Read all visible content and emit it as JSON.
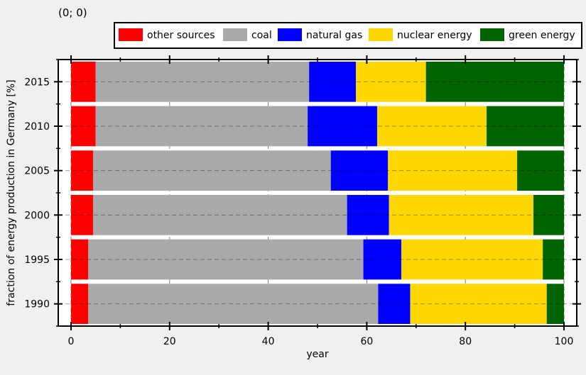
{
  "coord_readout": "(0; 0)",
  "chart_data": {
    "type": "bar",
    "orientation": "horizontal",
    "stacked": true,
    "title": "",
    "xlabel": "year",
    "ylabel": "fraction of energy production in Germany [%]",
    "xlim": [
      0,
      100
    ],
    "xticks": [
      0,
      20,
      40,
      60,
      80,
      100
    ],
    "categories": [
      "1990",
      "1995",
      "2000",
      "2005",
      "2010",
      "2015"
    ],
    "series": [
      {
        "name": "other sources",
        "color": "#ff0000",
        "values": [
          3.5,
          3.5,
          4.5,
          4.5,
          5.0,
          5.0
        ]
      },
      {
        "name": "coal",
        "color": "#a9a9a9",
        "values": [
          58.8,
          55.8,
          51.5,
          48.2,
          43.0,
          43.3
        ]
      },
      {
        "name": "natural gas",
        "color": "#0000ff",
        "values": [
          6.5,
          7.7,
          8.5,
          11.6,
          14.1,
          9.5
        ]
      },
      {
        "name": "nuclear energy",
        "color": "#ffd700",
        "values": [
          27.7,
          28.7,
          29.3,
          26.2,
          22.2,
          14.2
        ]
      },
      {
        "name": "green energy",
        "color": "#006400",
        "values": [
          3.5,
          4.3,
          6.2,
          9.5,
          15.7,
          28.0
        ]
      }
    ],
    "legend_position": "top-right",
    "grid": true
  }
}
